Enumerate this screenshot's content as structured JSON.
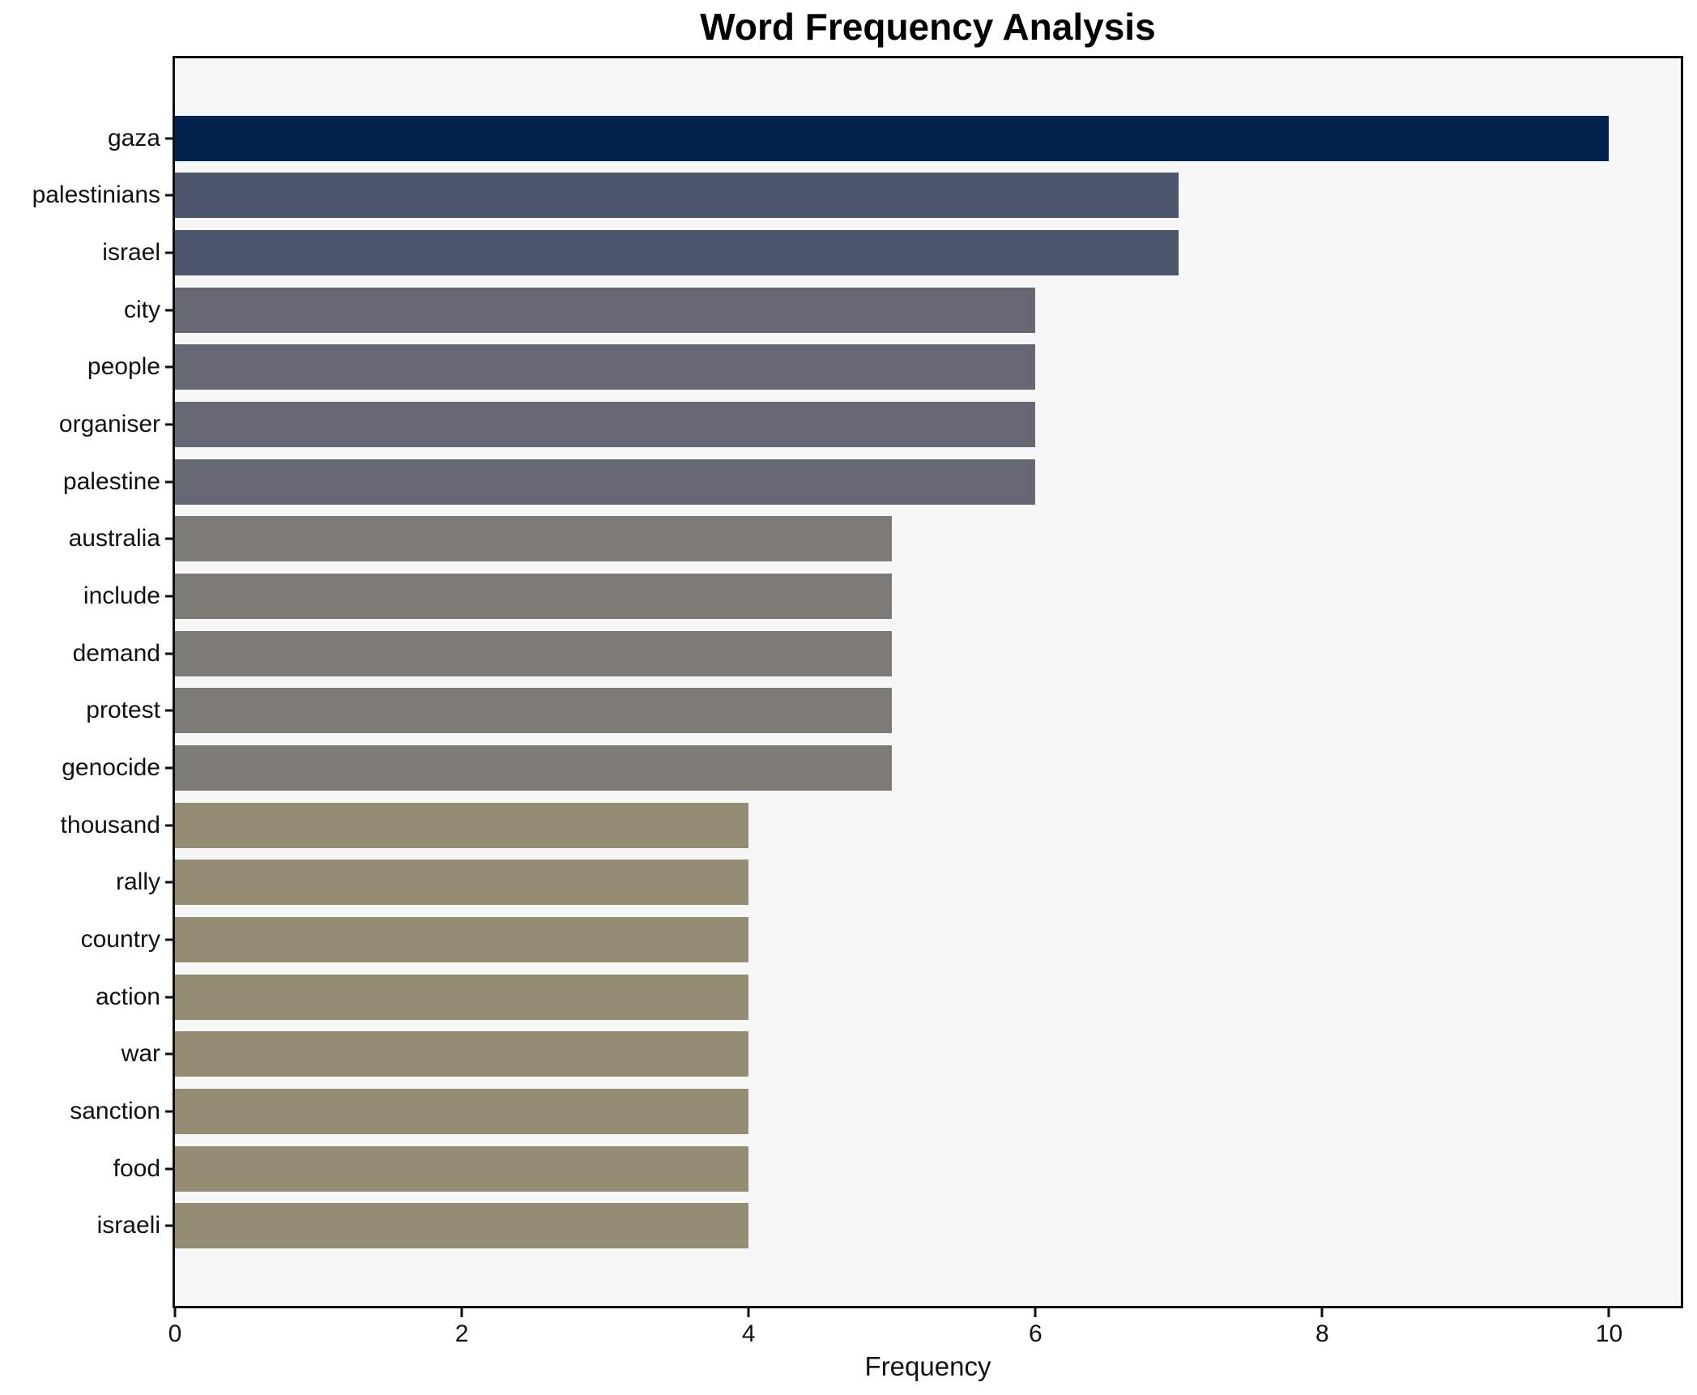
{
  "chart_data": {
    "type": "bar",
    "orientation": "horizontal",
    "title": "Word Frequency Analysis",
    "xlabel": "Frequency",
    "ylabel": "",
    "categories": [
      "gaza",
      "palestinians",
      "israel",
      "city",
      "people",
      "organiser",
      "palestine",
      "australia",
      "include",
      "demand",
      "protest",
      "genocide",
      "thousand",
      "rally",
      "country",
      "action",
      "war",
      "sanction",
      "food",
      "israeli"
    ],
    "values": [
      10,
      7,
      7,
      6,
      6,
      6,
      6,
      5,
      5,
      5,
      5,
      5,
      4,
      4,
      4,
      4,
      4,
      4,
      4,
      4
    ],
    "bar_colors": [
      "#02234d",
      "#4d566c",
      "#4d566c",
      "#656872",
      "#656872",
      "#656872",
      "#656872",
      "#7b7a74",
      "#7b7a74",
      "#7b7a74",
      "#7b7a74",
      "#7b7a74",
      "#948d74",
      "#948d74",
      "#948d74",
      "#948d74",
      "#948d74",
      "#948d74",
      "#948d74",
      "#948d74"
    ],
    "xlim": [
      0,
      10.5
    ],
    "xticks": [
      0,
      2,
      4,
      6,
      8,
      10
    ],
    "grid": false,
    "legend": null,
    "plot_bg": "#f7f7f8",
    "figure_bg": "#ffffff",
    "spine_color": "#0f0f0f",
    "text_color": "#111111"
  }
}
